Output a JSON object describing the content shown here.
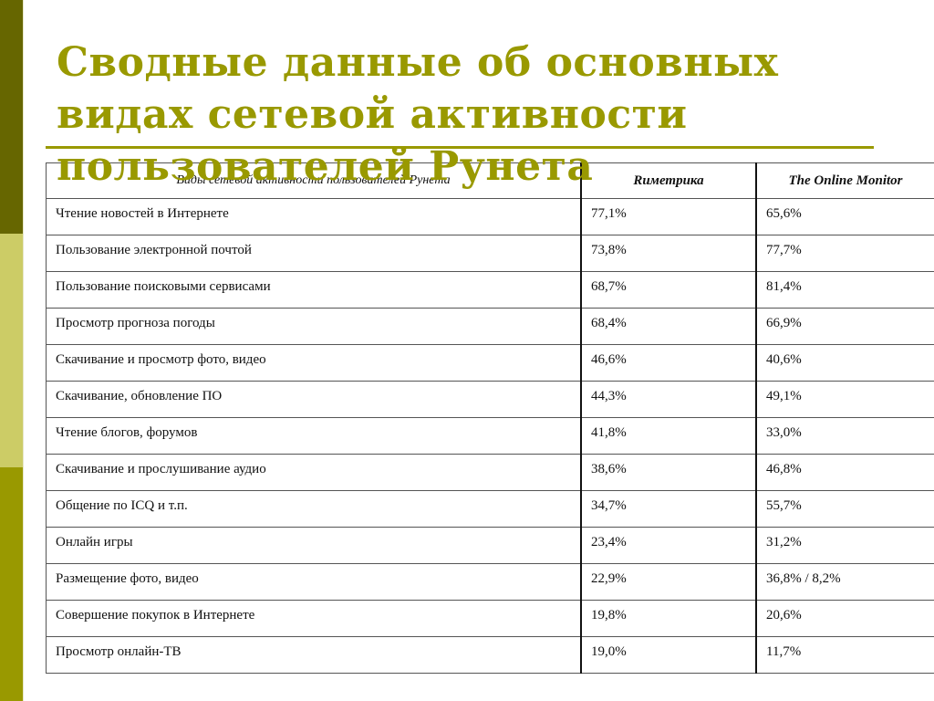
{
  "slide": {
    "title": "Сводные данные об основных видах сетевой активности пользователей Рунета",
    "colors": {
      "accent": "#999900",
      "sidebar_dark": "#666600",
      "sidebar_light": "#cccc66",
      "sidebar_mid": "#999900"
    }
  },
  "table": {
    "headers": [
      "Виды сетевой активности пользователей Рунета",
      "Rиметрика",
      "The Online Monitor"
    ],
    "rows": [
      {
        "activity": "Чтение новостей в Интернете",
        "rimetrika": "77,1%",
        "online_monitor": "65,6%"
      },
      {
        "activity": "Пользование электронной почтой",
        "rimetrika": "73,8%",
        "online_monitor": "77,7%"
      },
      {
        "activity": "Пользование поисковыми сервисами",
        "rimetrika": "68,7%",
        "online_monitor": "81,4%"
      },
      {
        "activity": "Просмотр прогноза погоды",
        "rimetrika": "68,4%",
        "online_monitor": "66,9%"
      },
      {
        "activity": "Скачивание и просмотр фото, видео",
        "rimetrika": "46,6%",
        "online_monitor": "40,6%"
      },
      {
        "activity": "Скачивание, обновление ПО",
        "rimetrika": "44,3%",
        "online_monitor": "49,1%"
      },
      {
        "activity": "Чтение блогов, форумов",
        "rimetrika": "41,8%",
        "online_monitor": "33,0%"
      },
      {
        "activity": "Скачивание и прослушивание аудио",
        "rimetrika": "38,6%",
        "online_monitor": "46,8%"
      },
      {
        "activity": "Общение по ICQ и т.п.",
        "rimetrika": "34,7%",
        "online_monitor": "55,7%"
      },
      {
        "activity": "Онлайн игры",
        "rimetrika": "23,4%",
        "online_monitor": "31,2%"
      },
      {
        "activity": "Размещение фото, видео",
        "rimetrika": "22,9%",
        "online_monitor": "36,8% / 8,2%"
      },
      {
        "activity": "Совершение покупок в Интернете",
        "rimetrika": "19,8%",
        "online_monitor": "20,6%"
      },
      {
        "activity": "Просмотр онлайн-ТВ",
        "rimetrika": "19,0%",
        "online_monitor": "11,7%"
      }
    ]
  }
}
